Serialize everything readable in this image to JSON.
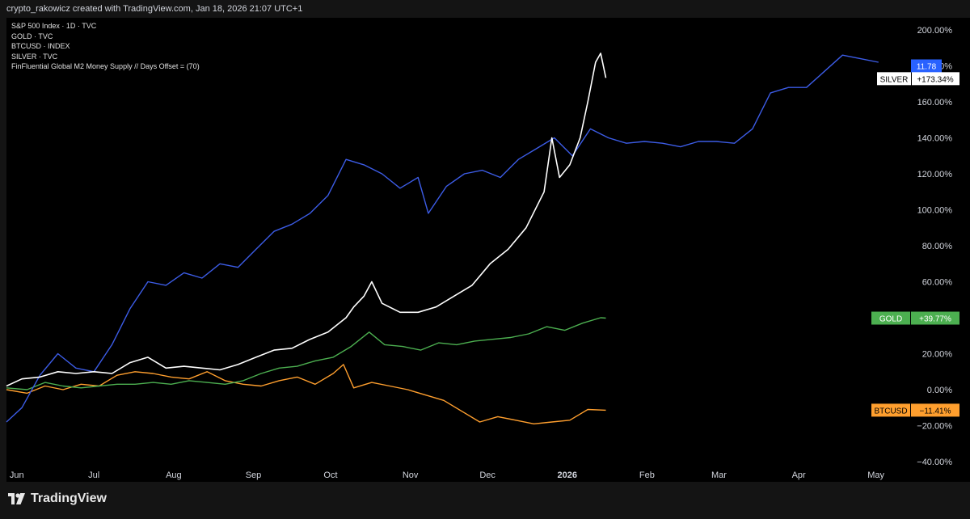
{
  "header": {
    "attribution": "crypto_rakowicz created with TradingView.com, Jan 18, 2026 21:07 UTC+1"
  },
  "legend": {
    "items": [
      "S&P 500 Index · 1D · TVC",
      "GOLD · TVC",
      "BTCUSD · INDEX",
      "SILVER · TVC",
      "FinFluential Global M2 Money Supply // Days Offset = (70)"
    ]
  },
  "footer": {
    "brand": "TradingView"
  },
  "colors": {
    "background": "#000000",
    "frame": "#141414",
    "text": "#d1d4dc",
    "silver": "#ffffff",
    "m2": "#3c5ce6",
    "gold": "#4caf50",
    "btc": "#ff9f2e",
    "m2_badge": "#2962ff"
  },
  "chart_data": {
    "type": "line",
    "y_unit": "%",
    "ylim": [
      -40,
      210
    ],
    "y_ticks": [
      "200.00%",
      "180.00%",
      "160.00%",
      "140.00%",
      "120.00%",
      "100.00%",
      "80.00%",
      "60.00%",
      "40.00%",
      "20.00%",
      "0.00%",
      "−20.00%",
      "−40.00%"
    ],
    "y_tick_values": [
      200,
      180,
      160,
      140,
      120,
      100,
      80,
      60,
      40,
      20,
      0,
      -20,
      -40
    ],
    "x_labels": [
      "Jun",
      "Jul",
      "Aug",
      "Sep",
      "Oct",
      "Nov",
      "Dec",
      "2026",
      "Feb",
      "Mar",
      "Apr",
      "May"
    ],
    "x_label_dates": [
      "2025-06-01",
      "2025-07-01",
      "2025-08-01",
      "2025-09-01",
      "2025-10-01",
      "2025-11-01",
      "2025-12-01",
      "2026-01-01",
      "2026-02-01",
      "2026-03-01",
      "2026-04-01",
      "2026-05-01"
    ],
    "x_start": "2025-05-28",
    "x_end": "2026-05-14",
    "series": [
      {
        "name": "SILVER",
        "color": "#ffffff",
        "label": "SILVER",
        "value_label": "+173.34%",
        "points": [
          [
            "2025-05-28",
            2
          ],
          [
            "2025-06-03",
            6
          ],
          [
            "2025-06-10",
            7
          ],
          [
            "2025-06-17",
            10
          ],
          [
            "2025-06-24",
            9
          ],
          [
            "2025-07-01",
            10
          ],
          [
            "2025-07-08",
            9
          ],
          [
            "2025-07-15",
            15
          ],
          [
            "2025-07-22",
            18
          ],
          [
            "2025-07-29",
            12
          ],
          [
            "2025-08-05",
            13
          ],
          [
            "2025-08-12",
            12
          ],
          [
            "2025-08-19",
            11
          ],
          [
            "2025-08-26",
            14
          ],
          [
            "2025-09-02",
            18
          ],
          [
            "2025-09-09",
            22
          ],
          [
            "2025-09-16",
            23
          ],
          [
            "2025-09-23",
            28
          ],
          [
            "2025-09-30",
            32
          ],
          [
            "2025-10-07",
            40
          ],
          [
            "2025-10-10",
            46
          ],
          [
            "2025-10-14",
            52
          ],
          [
            "2025-10-17",
            60
          ],
          [
            "2025-10-21",
            48
          ],
          [
            "2025-10-28",
            43
          ],
          [
            "2025-11-04",
            43
          ],
          [
            "2025-11-11",
            46
          ],
          [
            "2025-11-18",
            52
          ],
          [
            "2025-11-25",
            58
          ],
          [
            "2025-12-02",
            70
          ],
          [
            "2025-12-09",
            78
          ],
          [
            "2025-12-16",
            90
          ],
          [
            "2025-12-23",
            110
          ],
          [
            "2025-12-26",
            140
          ],
          [
            "2025-12-29",
            118
          ],
          [
            "2026-01-02",
            125
          ],
          [
            "2026-01-06",
            140
          ],
          [
            "2026-01-09",
            160
          ],
          [
            "2026-01-12",
            182
          ],
          [
            "2026-01-14",
            187
          ],
          [
            "2026-01-16",
            173.34
          ]
        ]
      },
      {
        "name": "FinFluential Global M2 Money Supply",
        "color": "#3c5ce6",
        "label": "11.78",
        "points": [
          [
            "2025-05-28",
            -18
          ],
          [
            "2025-06-03",
            -10
          ],
          [
            "2025-06-10",
            8
          ],
          [
            "2025-06-17",
            20
          ],
          [
            "2025-06-24",
            12
          ],
          [
            "2025-07-01",
            10
          ],
          [
            "2025-07-08",
            25
          ],
          [
            "2025-07-15",
            45
          ],
          [
            "2025-07-22",
            60
          ],
          [
            "2025-07-29",
            58
          ],
          [
            "2025-08-05",
            65
          ],
          [
            "2025-08-12",
            62
          ],
          [
            "2025-08-19",
            70
          ],
          [
            "2025-08-26",
            68
          ],
          [
            "2025-09-02",
            78
          ],
          [
            "2025-09-09",
            88
          ],
          [
            "2025-09-16",
            92
          ],
          [
            "2025-09-23",
            98
          ],
          [
            "2025-09-30",
            108
          ],
          [
            "2025-10-07",
            128
          ],
          [
            "2025-10-14",
            125
          ],
          [
            "2025-10-21",
            120
          ],
          [
            "2025-10-28",
            112
          ],
          [
            "2025-11-04",
            118
          ],
          [
            "2025-11-08",
            98
          ],
          [
            "2025-11-15",
            113
          ],
          [
            "2025-11-22",
            120
          ],
          [
            "2025-11-29",
            122
          ],
          [
            "2025-12-06",
            118
          ],
          [
            "2025-12-13",
            128
          ],
          [
            "2025-12-20",
            134
          ],
          [
            "2025-12-27",
            140
          ],
          [
            "2026-01-03",
            130
          ],
          [
            "2026-01-10",
            145
          ],
          [
            "2026-01-17",
            140
          ],
          [
            "2026-01-24",
            137
          ],
          [
            "2026-01-31",
            138
          ],
          [
            "2026-02-07",
            137
          ],
          [
            "2026-02-14",
            135
          ],
          [
            "2026-02-21",
            138
          ],
          [
            "2026-02-28",
            138
          ],
          [
            "2026-03-07",
            137
          ],
          [
            "2026-03-14",
            145
          ],
          [
            "2026-03-21",
            165
          ],
          [
            "2026-03-28",
            168
          ],
          [
            "2026-04-04",
            168
          ],
          [
            "2026-04-11",
            177
          ],
          [
            "2026-04-18",
            186
          ],
          [
            "2026-04-25",
            184
          ],
          [
            "2026-05-02",
            182
          ]
        ]
      },
      {
        "name": "GOLD",
        "color": "#4caf50",
        "label": "GOLD",
        "value_label": "+39.77%",
        "points": [
          [
            "2025-05-28",
            1
          ],
          [
            "2025-06-05",
            0
          ],
          [
            "2025-06-12",
            4
          ],
          [
            "2025-06-19",
            2
          ],
          [
            "2025-06-26",
            1
          ],
          [
            "2025-07-03",
            2
          ],
          [
            "2025-07-10",
            3
          ],
          [
            "2025-07-17",
            3
          ],
          [
            "2025-07-24",
            4
          ],
          [
            "2025-07-31",
            3
          ],
          [
            "2025-08-07",
            5
          ],
          [
            "2025-08-14",
            4
          ],
          [
            "2025-08-21",
            3
          ],
          [
            "2025-08-28",
            5
          ],
          [
            "2025-09-04",
            9
          ],
          [
            "2025-09-11",
            12
          ],
          [
            "2025-09-18",
            13
          ],
          [
            "2025-09-25",
            16
          ],
          [
            "2025-10-02",
            18
          ],
          [
            "2025-10-09",
            24
          ],
          [
            "2025-10-16",
            32
          ],
          [
            "2025-10-22",
            25
          ],
          [
            "2025-10-29",
            24
          ],
          [
            "2025-11-05",
            22
          ],
          [
            "2025-11-12",
            26
          ],
          [
            "2025-11-19",
            25
          ],
          [
            "2025-11-26",
            27
          ],
          [
            "2025-12-03",
            28
          ],
          [
            "2025-12-10",
            29
          ],
          [
            "2025-12-17",
            31
          ],
          [
            "2025-12-24",
            35
          ],
          [
            "2025-12-31",
            33
          ],
          [
            "2026-01-07",
            37
          ],
          [
            "2026-01-14",
            40
          ],
          [
            "2026-01-16",
            39.77
          ]
        ]
      },
      {
        "name": "BTCUSD",
        "color": "#ff9f2e",
        "label": "BTCUSD",
        "value_label": "−11.41%",
        "points": [
          [
            "2025-05-28",
            0
          ],
          [
            "2025-06-05",
            -2
          ],
          [
            "2025-06-12",
            2
          ],
          [
            "2025-06-19",
            0
          ],
          [
            "2025-06-26",
            3
          ],
          [
            "2025-07-03",
            2
          ],
          [
            "2025-07-10",
            8
          ],
          [
            "2025-07-17",
            10
          ],
          [
            "2025-07-24",
            9
          ],
          [
            "2025-07-31",
            7
          ],
          [
            "2025-08-07",
            6
          ],
          [
            "2025-08-14",
            10
          ],
          [
            "2025-08-21",
            5
          ],
          [
            "2025-08-28",
            3
          ],
          [
            "2025-09-04",
            2
          ],
          [
            "2025-09-11",
            5
          ],
          [
            "2025-09-18",
            7
          ],
          [
            "2025-09-25",
            3
          ],
          [
            "2025-10-02",
            9
          ],
          [
            "2025-10-06",
            14
          ],
          [
            "2025-10-10",
            1
          ],
          [
            "2025-10-17",
            4
          ],
          [
            "2025-10-24",
            2
          ],
          [
            "2025-10-31",
            0
          ],
          [
            "2025-11-07",
            -3
          ],
          [
            "2025-11-14",
            -6
          ],
          [
            "2025-11-21",
            -12
          ],
          [
            "2025-11-28",
            -18
          ],
          [
            "2025-12-05",
            -15
          ],
          [
            "2025-12-12",
            -17
          ],
          [
            "2025-12-19",
            -19
          ],
          [
            "2025-12-26",
            -18
          ],
          [
            "2026-01-02",
            -17
          ],
          [
            "2026-01-09",
            -11
          ],
          [
            "2026-01-16",
            -11.41
          ]
        ]
      }
    ]
  }
}
